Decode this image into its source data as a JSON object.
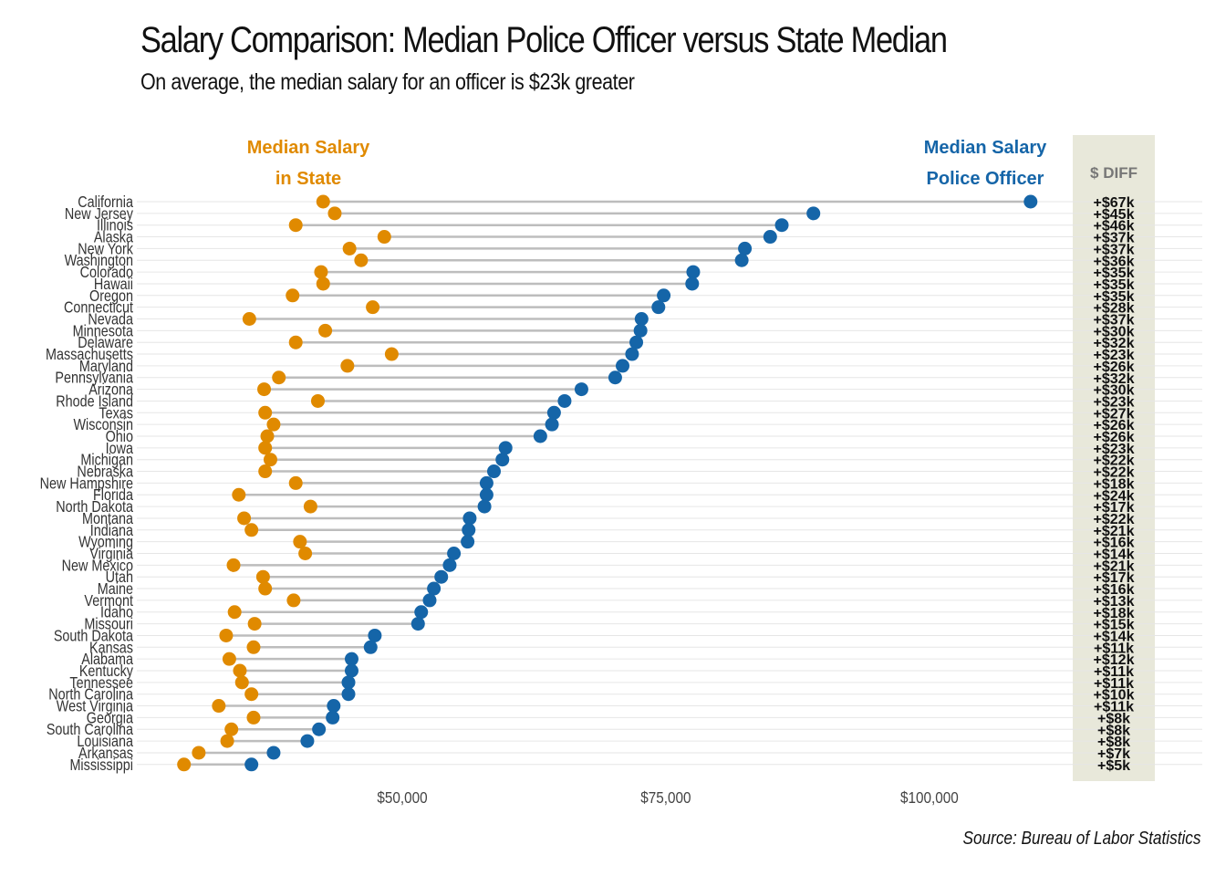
{
  "title": "Salary Comparison: Median Police Officer versus State Median",
  "subtitle": "On average, the median salary for an officer is $23k greater",
  "source": "Source: Bureau of Labor Statistics",
  "colors": {
    "state": "#E08A00",
    "officer": "#1565A8",
    "segment": "#BDBDBD",
    "diff_bg": "#E8E8DA",
    "diff_header": "#777777",
    "diff_text": "#111111",
    "grid": "#E6E6E6"
  },
  "chart_data": {
    "type": "dumbbell",
    "legend": {
      "state": [
        "Median Salary",
        "in State"
      ],
      "officer": [
        "Median Salary",
        "Police Officer"
      ],
      "diff_header": "$ DIFF"
    },
    "xlim": [
      25000,
      120000
    ],
    "x_ticks": [
      {
        "value": 50000,
        "label": "$50,000"
      },
      {
        "value": 75000,
        "label": "$75,000"
      },
      {
        "value": 100000,
        "label": "$100,000"
      }
    ],
    "rows": [
      {
        "state": "California",
        "state_median": 42500,
        "officer_median": 109600,
        "diff": "+$67k"
      },
      {
        "state": "New Jersey",
        "state_median": 43600,
        "officer_median": 89000,
        "diff": "+$45k"
      },
      {
        "state": "Illinois",
        "state_median": 39900,
        "officer_median": 86000,
        "diff": "+$46k"
      },
      {
        "state": "Alaska",
        "state_median": 48300,
        "officer_median": 84900,
        "diff": "+$37k"
      },
      {
        "state": "New York",
        "state_median": 45000,
        "officer_median": 82500,
        "diff": "+$37k"
      },
      {
        "state": "Washington",
        "state_median": 46100,
        "officer_median": 82200,
        "diff": "+$36k"
      },
      {
        "state": "Colorado",
        "state_median": 42300,
        "officer_median": 77600,
        "diff": "+$35k"
      },
      {
        "state": "Hawaii",
        "state_median": 42500,
        "officer_median": 77500,
        "diff": "+$35k"
      },
      {
        "state": "Oregon",
        "state_median": 39600,
        "officer_median": 74800,
        "diff": "+$35k"
      },
      {
        "state": "Connecticut",
        "state_median": 47200,
        "officer_median": 74300,
        "diff": "+$28k"
      },
      {
        "state": "Nevada",
        "state_median": 35500,
        "officer_median": 72700,
        "diff": "+$37k"
      },
      {
        "state": "Minnesota",
        "state_median": 42700,
        "officer_median": 72600,
        "diff": "+$30k"
      },
      {
        "state": "Delaware",
        "state_median": 39900,
        "officer_median": 72200,
        "diff": "+$32k"
      },
      {
        "state": "Massachusetts",
        "state_median": 49000,
        "officer_median": 71800,
        "diff": "+$23k"
      },
      {
        "state": "Maryland",
        "state_median": 44800,
        "officer_median": 70900,
        "diff": "+$26k"
      },
      {
        "state": "Pennsylvania",
        "state_median": 38300,
        "officer_median": 70200,
        "diff": "+$32k"
      },
      {
        "state": "Arizona",
        "state_median": 36900,
        "officer_median": 67000,
        "diff": "+$30k"
      },
      {
        "state": "Rhode Island",
        "state_median": 42000,
        "officer_median": 65400,
        "diff": "+$23k"
      },
      {
        "state": "Texas",
        "state_median": 37000,
        "officer_median": 64400,
        "diff": "+$27k"
      },
      {
        "state": "Wisconsin",
        "state_median": 37800,
        "officer_median": 64200,
        "diff": "+$26k"
      },
      {
        "state": "Ohio",
        "state_median": 37200,
        "officer_median": 63100,
        "diff": "+$26k"
      },
      {
        "state": "Iowa",
        "state_median": 37000,
        "officer_median": 59800,
        "diff": "+$23k"
      },
      {
        "state": "Michigan",
        "state_median": 37500,
        "officer_median": 59500,
        "diff": "+$22k"
      },
      {
        "state": "Nebraska",
        "state_median": 37000,
        "officer_median": 58700,
        "diff": "+$22k"
      },
      {
        "state": "New Hampshire",
        "state_median": 39900,
        "officer_median": 58000,
        "diff": "+$18k"
      },
      {
        "state": "Florida",
        "state_median": 34500,
        "officer_median": 58000,
        "diff": "+$24k"
      },
      {
        "state": "North Dakota",
        "state_median": 41300,
        "officer_median": 57800,
        "diff": "+$17k"
      },
      {
        "state": "Montana",
        "state_median": 35000,
        "officer_median": 56400,
        "diff": "+$22k"
      },
      {
        "state": "Indiana",
        "state_median": 35700,
        "officer_median": 56300,
        "diff": "+$21k"
      },
      {
        "state": "Wyoming",
        "state_median": 40300,
        "officer_median": 56200,
        "diff": "+$16k"
      },
      {
        "state": "Virginia",
        "state_median": 40800,
        "officer_median": 54900,
        "diff": "+$14k"
      },
      {
        "state": "New Mexico",
        "state_median": 34000,
        "officer_median": 54500,
        "diff": "+$21k"
      },
      {
        "state": "Utah",
        "state_median": 36800,
        "officer_median": 53700,
        "diff": "+$17k"
      },
      {
        "state": "Maine",
        "state_median": 37000,
        "officer_median": 53000,
        "diff": "+$16k"
      },
      {
        "state": "Vermont",
        "state_median": 39700,
        "officer_median": 52600,
        "diff": "+$13k"
      },
      {
        "state": "Idaho",
        "state_median": 34100,
        "officer_median": 51800,
        "diff": "+$18k"
      },
      {
        "state": "Missouri",
        "state_median": 36000,
        "officer_median": 51500,
        "diff": "+$15k"
      },
      {
        "state": "South Dakota",
        "state_median": 33300,
        "officer_median": 47400,
        "diff": "+$14k"
      },
      {
        "state": "Kansas",
        "state_median": 35900,
        "officer_median": 47000,
        "diff": "+$11k"
      },
      {
        "state": "Alabama",
        "state_median": 33600,
        "officer_median": 45200,
        "diff": "+$12k"
      },
      {
        "state": "Kentucky",
        "state_median": 34600,
        "officer_median": 45200,
        "diff": "+$11k"
      },
      {
        "state": "Tennessee",
        "state_median": 34800,
        "officer_median": 44900,
        "diff": "+$11k"
      },
      {
        "state": "North Carolina",
        "state_median": 35700,
        "officer_median": 44900,
        "diff": "+$10k"
      },
      {
        "state": "West Virginia",
        "state_median": 32600,
        "officer_median": 43500,
        "diff": "+$11k"
      },
      {
        "state": "Georgia",
        "state_median": 35900,
        "officer_median": 43400,
        "diff": "+$8k"
      },
      {
        "state": "South Carolina",
        "state_median": 33800,
        "officer_median": 42100,
        "diff": "+$8k"
      },
      {
        "state": "Louisiana",
        "state_median": 33400,
        "officer_median": 41000,
        "diff": "+$8k"
      },
      {
        "state": "Arkansas",
        "state_median": 30700,
        "officer_median": 37800,
        "diff": "+$7k"
      },
      {
        "state": "Mississippi",
        "state_median": 29300,
        "officer_median": 35700,
        "diff": "+$5k"
      }
    ]
  }
}
